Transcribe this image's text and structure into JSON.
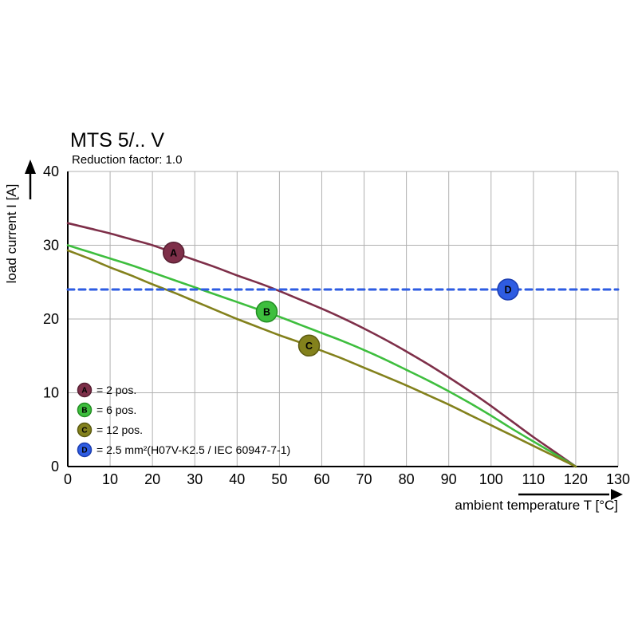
{
  "title": "MTS 5/.. V",
  "subtitle": "Reduction factor: 1.0",
  "axes": {
    "xlabel": "ambient temperature T [°C]",
    "ylabel": "load current I [A]"
  },
  "colors": {
    "background": "#ffffff",
    "grid": "#b0b0b0",
    "axis": "#000000"
  },
  "legend": [
    {
      "id": "A",
      "label": "= 2 pos."
    },
    {
      "id": "B",
      "label": "= 6 pos."
    },
    {
      "id": "C",
      "label": "= 12 pos."
    },
    {
      "id": "D",
      "label": "= 2.5 mm²(H07V-K2.5 / IEC 60947-7-1)"
    }
  ],
  "chart_data": {
    "type": "line",
    "title": "MTS 5/.. V",
    "subtitle": "Reduction factor: 1.0",
    "xlabel": "ambient temperature T [°C]",
    "ylabel": "load current I [A]",
    "xlim": [
      0,
      130
    ],
    "ylim": [
      0,
      40
    ],
    "xticks": [
      0,
      10,
      20,
      30,
      40,
      50,
      60,
      70,
      80,
      90,
      100,
      110,
      120,
      130
    ],
    "yticks": [
      0,
      10,
      20,
      30,
      40
    ],
    "grid": true,
    "legend_position": "lower-left",
    "series": [
      {
        "name": "A",
        "legend": "2 pos.",
        "color": "#7e2f49",
        "edge": "#571f32",
        "style": "solid",
        "marker": [
          25,
          29
        ],
        "points": [
          [
            0,
            33
          ],
          [
            5,
            32.3
          ],
          [
            10,
            31.6
          ],
          [
            15,
            30.8
          ],
          [
            20,
            30
          ],
          [
            25,
            29
          ],
          [
            30,
            28
          ],
          [
            35,
            27
          ],
          [
            40,
            25.9
          ],
          [
            45,
            24.9
          ],
          [
            50,
            23.8
          ],
          [
            55,
            22.6
          ],
          [
            60,
            21.4
          ],
          [
            65,
            20.1
          ],
          [
            70,
            18.7
          ],
          [
            75,
            17.2
          ],
          [
            80,
            15.6
          ],
          [
            85,
            13.9
          ],
          [
            90,
            12.1
          ],
          [
            95,
            10.2
          ],
          [
            100,
            8.2
          ],
          [
            105,
            6.1
          ],
          [
            110,
            4
          ],
          [
            115,
            2
          ],
          [
            120,
            0
          ]
        ]
      },
      {
        "name": "B",
        "legend": "6 pos.",
        "color": "#3ebe3e",
        "edge": "#238e23",
        "style": "solid",
        "marker": [
          47,
          21
        ],
        "points": [
          [
            0,
            30
          ],
          [
            5,
            29.1
          ],
          [
            10,
            28.2
          ],
          [
            15,
            27.3
          ],
          [
            20,
            26.3
          ],
          [
            25,
            25.3
          ],
          [
            30,
            24.3
          ],
          [
            35,
            23.3
          ],
          [
            40,
            22.3
          ],
          [
            45,
            21.3
          ],
          [
            50,
            20.3
          ],
          [
            55,
            19.2
          ],
          [
            60,
            18.1
          ],
          [
            65,
            17
          ],
          [
            70,
            15.8
          ],
          [
            75,
            14.5
          ],
          [
            80,
            13.1
          ],
          [
            85,
            11.7
          ],
          [
            90,
            10.2
          ],
          [
            95,
            8.6
          ],
          [
            100,
            6.9
          ],
          [
            105,
            5.1
          ],
          [
            110,
            3.4
          ],
          [
            115,
            1.7
          ],
          [
            120,
            0
          ]
        ]
      },
      {
        "name": "C",
        "legend": "12 pos.",
        "color": "#83811c",
        "edge": "#5c5a10",
        "style": "solid",
        "marker": [
          57,
          16.4
        ],
        "points": [
          [
            0,
            29.3
          ],
          [
            5,
            28.2
          ],
          [
            10,
            27
          ],
          [
            15,
            25.9
          ],
          [
            20,
            24.7
          ],
          [
            25,
            23.6
          ],
          [
            30,
            22.4
          ],
          [
            35,
            21.2
          ],
          [
            40,
            20
          ],
          [
            45,
            18.9
          ],
          [
            50,
            17.8
          ],
          [
            55,
            16.8
          ],
          [
            60,
            15.7
          ],
          [
            65,
            14.6
          ],
          [
            70,
            13.4
          ],
          [
            75,
            12.2
          ],
          [
            80,
            11
          ],
          [
            85,
            9.7
          ],
          [
            90,
            8.4
          ],
          [
            95,
            7
          ],
          [
            100,
            5.6
          ],
          [
            105,
            4.2
          ],
          [
            110,
            2.8
          ],
          [
            115,
            1.4
          ],
          [
            120,
            0
          ]
        ]
      },
      {
        "name": "D",
        "legend": "2.5 mm²(H07V-K2.5 / IEC 60947-7-1)",
        "color": "#2e5ce2",
        "edge": "#1b3db0",
        "style": "dashed",
        "marker": [
          104,
          24
        ],
        "points": [
          [
            0,
            24
          ],
          [
            130,
            24
          ]
        ]
      }
    ]
  }
}
